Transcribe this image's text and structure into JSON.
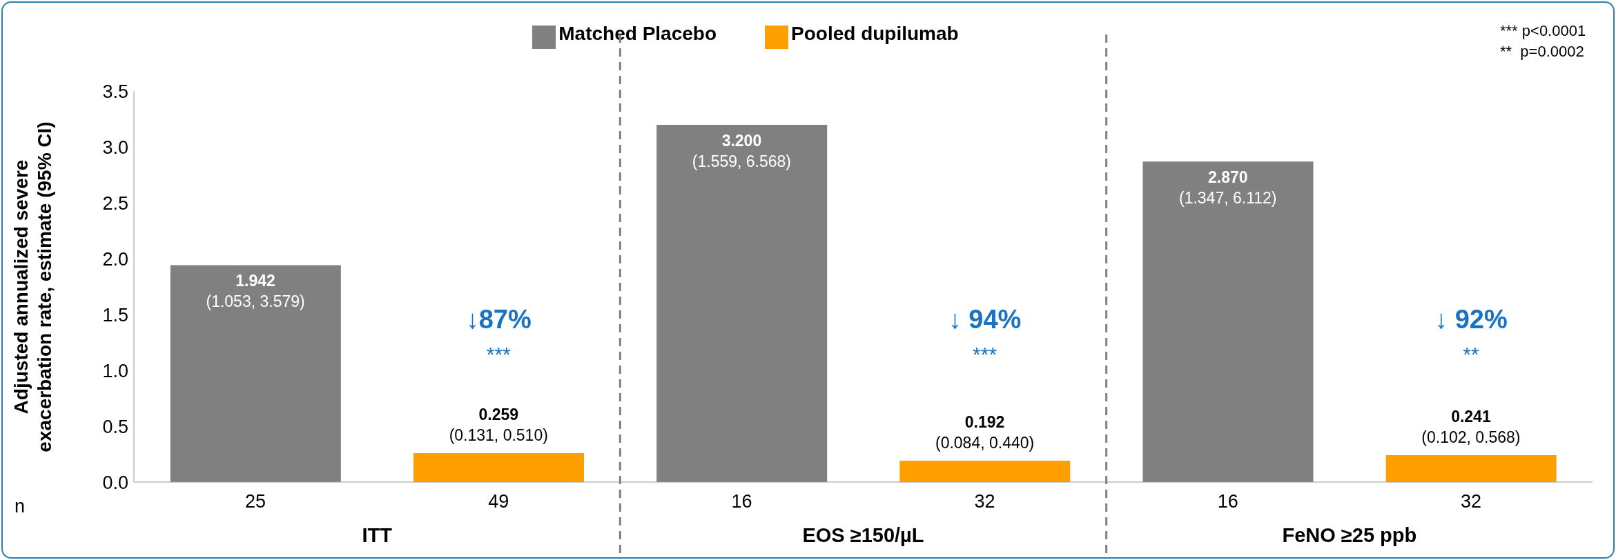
{
  "chart_data": {
    "type": "bar",
    "stacked": true,
    "ylabel": "Adjusted annualized severe\nexacerbation rate, estimate (95% CI)",
    "categories": [
      "25",
      "49",
      "16",
      "32",
      "16",
      "32"
    ],
    "series": [
      {
        "name": "Matched Placebo",
        "color": "#808080",
        "values": [
          1.942,
          null,
          3.2,
          null,
          2.87,
          null
        ],
        "value_labels": [
          "1.942\n(1.053, 3.579)",
          null,
          "3.200\n(1.559, 6.568)",
          null,
          "2.870\n(1.347, 6.112)",
          null
        ]
      },
      {
        "name": "Pooled dupilumab",
        "color": "#ffa000",
        "values": [
          null,
          0.259,
          null,
          0.192,
          null,
          0.241
        ],
        "value_labels": [
          null,
          "0.259\n(0.131, 0.510)",
          null,
          "0.192\n(0.084, 0.440)",
          null,
          "0.241\n(0.102, 0.568)"
        ]
      }
    ],
    "ylim": [
      0,
      3.5
    ],
    "yticks": [
      {
        "value": 0,
        "label": "0.0"
      },
      0.5,
      {
        "value": 1,
        "label": "1.0"
      },
      1.5,
      {
        "value": 2,
        "label": "2.0"
      },
      2.5,
      {
        "value": 3,
        "label": "3.0"
      },
      3.5
    ],
    "legend": "top",
    "grid": false,
    "annotations": [
      "↓87%\n***",
      "↓ 94%\n***",
      "↓ 92%\n**",
      "ITT",
      "EOS ≥150/µL",
      "FeNO ≥25 ppb",
      "n",
      "*** p<0.0001\n**  p=0.0002"
    ]
  }
}
